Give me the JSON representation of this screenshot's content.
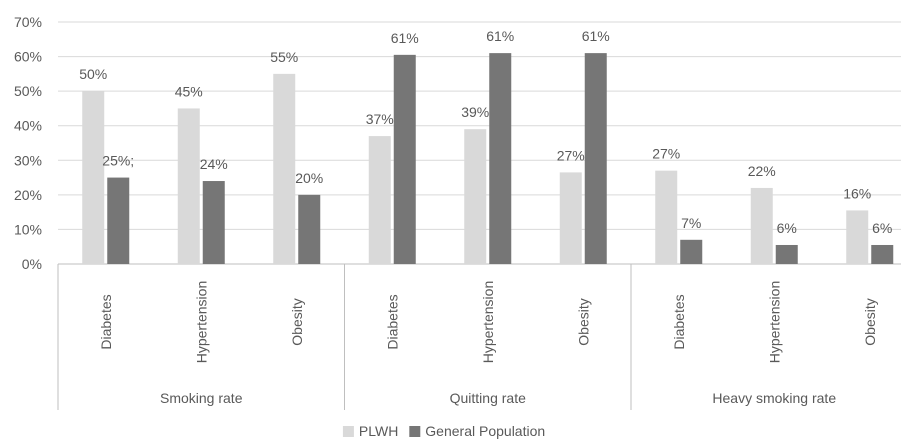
{
  "chart_data": {
    "type": "bar",
    "groups": [
      {
        "name": "Smoking rate",
        "categories": [
          "Diabetes",
          "Hypertension",
          "Obesity"
        ]
      },
      {
        "name": "Quitting rate",
        "categories": [
          "Diabetes",
          "Hypertension",
          "Obesity"
        ]
      },
      {
        "name": "Heavy smoking rate",
        "categories": [
          "Diabetes",
          "Hypertension",
          "Obesity"
        ]
      }
    ],
    "series": [
      {
        "name": "PLWH",
        "color": "#d9d9d9",
        "values": [
          50,
          45,
          55,
          37,
          39,
          26.5,
          27,
          22,
          15.5
        ],
        "labels": [
          "50%",
          "45%",
          "55%",
          "37%",
          "39%",
          "27%",
          "27%",
          "22%",
          "16%"
        ]
      },
      {
        "name": "General Population",
        "color": "#767676",
        "values": [
          25,
          24,
          20,
          60.5,
          61,
          61,
          7,
          5.5,
          5.5
        ],
        "labels": [
          "25%;",
          "24%",
          "20%",
          "61%",
          "61%",
          "61%",
          "7%",
          "6%",
          "6%"
        ]
      }
    ],
    "yticks": [
      "0%",
      "10%",
      "20%",
      "30%",
      "40%",
      "50%",
      "60%",
      "70%"
    ],
    "ylim": [
      0,
      70
    ],
    "grid": true,
    "legend_position": "bottom"
  }
}
